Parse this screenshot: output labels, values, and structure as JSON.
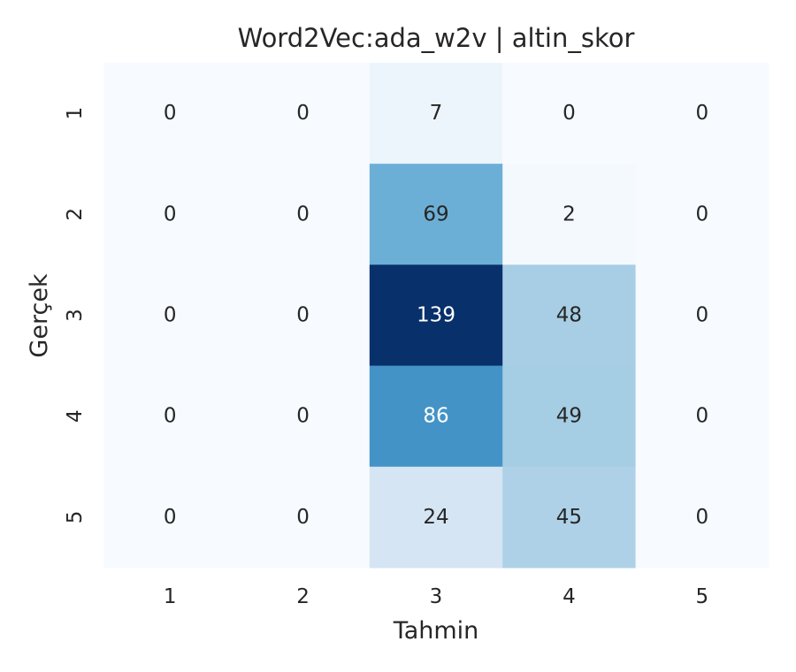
{
  "chart_data": {
    "type": "heatmap",
    "title": "Word2Vec:ada_w2v | altin_skor",
    "xlabel": "Tahmin",
    "ylabel": "Gerçek",
    "x_categories": [
      "1",
      "2",
      "3",
      "4",
      "5"
    ],
    "y_categories": [
      "1",
      "2",
      "3",
      "4",
      "5"
    ],
    "values": [
      [
        0,
        0,
        7,
        0,
        0
      ],
      [
        0,
        0,
        69,
        2,
        0
      ],
      [
        0,
        0,
        139,
        48,
        0
      ],
      [
        0,
        0,
        86,
        49,
        0
      ],
      [
        0,
        0,
        24,
        45,
        0
      ]
    ],
    "colormap": "Blues",
    "vmin": 0,
    "vmax": 139,
    "colorbar": false,
    "grid": false
  }
}
